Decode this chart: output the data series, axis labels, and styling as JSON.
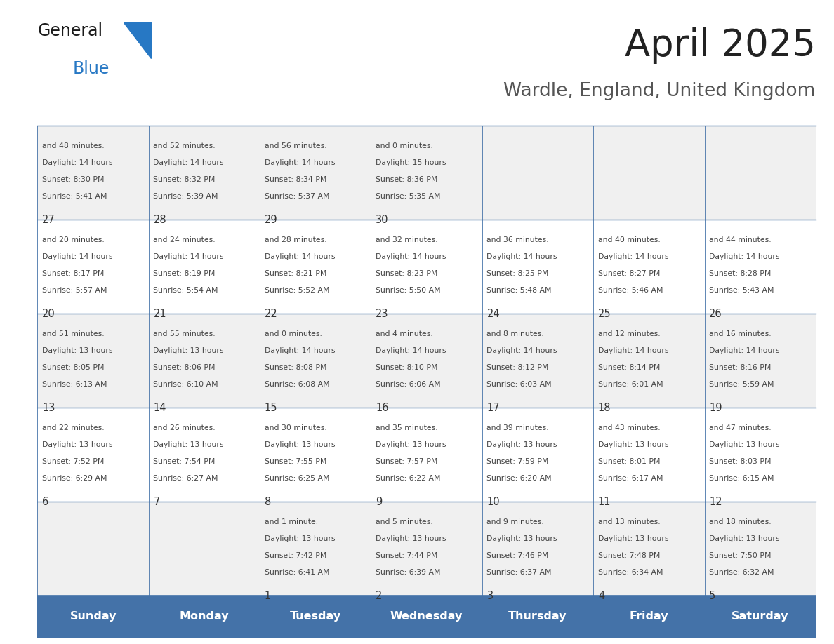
{
  "title": "April 2025",
  "subtitle": "Wardle, England, United Kingdom",
  "days_of_week": [
    "Sunday",
    "Monday",
    "Tuesday",
    "Wednesday",
    "Thursday",
    "Friday",
    "Saturday"
  ],
  "header_bg": "#4472a8",
  "header_text": "#ffffff",
  "cell_bg_odd": "#f0f0f0",
  "cell_bg_even": "#ffffff",
  "day_num_color": "#333333",
  "cell_text_color": "#444444",
  "border_color": "#4472a8",
  "title_color": "#222222",
  "subtitle_color": "#555555",
  "logo_general_color": "#1a1a1a",
  "logo_blue_color": "#2778c4",
  "weeks": [
    [
      {
        "day": null,
        "sunrise": null,
        "sunset": null,
        "daylight": null
      },
      {
        "day": null,
        "sunrise": null,
        "sunset": null,
        "daylight": null
      },
      {
        "day": 1,
        "sunrise": "6:41 AM",
        "sunset": "7:42 PM",
        "daylight_a": "13 hours",
        "daylight_b": "and 1 minute."
      },
      {
        "day": 2,
        "sunrise": "6:39 AM",
        "sunset": "7:44 PM",
        "daylight_a": "13 hours",
        "daylight_b": "and 5 minutes."
      },
      {
        "day": 3,
        "sunrise": "6:37 AM",
        "sunset": "7:46 PM",
        "daylight_a": "13 hours",
        "daylight_b": "and 9 minutes."
      },
      {
        "day": 4,
        "sunrise": "6:34 AM",
        "sunset": "7:48 PM",
        "daylight_a": "13 hours",
        "daylight_b": "and 13 minutes."
      },
      {
        "day": 5,
        "sunrise": "6:32 AM",
        "sunset": "7:50 PM",
        "daylight_a": "13 hours",
        "daylight_b": "and 18 minutes."
      }
    ],
    [
      {
        "day": 6,
        "sunrise": "6:29 AM",
        "sunset": "7:52 PM",
        "daylight_a": "13 hours",
        "daylight_b": "and 22 minutes."
      },
      {
        "day": 7,
        "sunrise": "6:27 AM",
        "sunset": "7:54 PM",
        "daylight_a": "13 hours",
        "daylight_b": "and 26 minutes."
      },
      {
        "day": 8,
        "sunrise": "6:25 AM",
        "sunset": "7:55 PM",
        "daylight_a": "13 hours",
        "daylight_b": "and 30 minutes."
      },
      {
        "day": 9,
        "sunrise": "6:22 AM",
        "sunset": "7:57 PM",
        "daylight_a": "13 hours",
        "daylight_b": "and 35 minutes."
      },
      {
        "day": 10,
        "sunrise": "6:20 AM",
        "sunset": "7:59 PM",
        "daylight_a": "13 hours",
        "daylight_b": "and 39 minutes."
      },
      {
        "day": 11,
        "sunrise": "6:17 AM",
        "sunset": "8:01 PM",
        "daylight_a": "13 hours",
        "daylight_b": "and 43 minutes."
      },
      {
        "day": 12,
        "sunrise": "6:15 AM",
        "sunset": "8:03 PM",
        "daylight_a": "13 hours",
        "daylight_b": "and 47 minutes."
      }
    ],
    [
      {
        "day": 13,
        "sunrise": "6:13 AM",
        "sunset": "8:05 PM",
        "daylight_a": "13 hours",
        "daylight_b": "and 51 minutes."
      },
      {
        "day": 14,
        "sunrise": "6:10 AM",
        "sunset": "8:06 PM",
        "daylight_a": "13 hours",
        "daylight_b": "and 55 minutes."
      },
      {
        "day": 15,
        "sunrise": "6:08 AM",
        "sunset": "8:08 PM",
        "daylight_a": "14 hours",
        "daylight_b": "and 0 minutes."
      },
      {
        "day": 16,
        "sunrise": "6:06 AM",
        "sunset": "8:10 PM",
        "daylight_a": "14 hours",
        "daylight_b": "and 4 minutes."
      },
      {
        "day": 17,
        "sunrise": "6:03 AM",
        "sunset": "8:12 PM",
        "daylight_a": "14 hours",
        "daylight_b": "and 8 minutes."
      },
      {
        "day": 18,
        "sunrise": "6:01 AM",
        "sunset": "8:14 PM",
        "daylight_a": "14 hours",
        "daylight_b": "and 12 minutes."
      },
      {
        "day": 19,
        "sunrise": "5:59 AM",
        "sunset": "8:16 PM",
        "daylight_a": "14 hours",
        "daylight_b": "and 16 minutes."
      }
    ],
    [
      {
        "day": 20,
        "sunrise": "5:57 AM",
        "sunset": "8:17 PM",
        "daylight_a": "14 hours",
        "daylight_b": "and 20 minutes."
      },
      {
        "day": 21,
        "sunrise": "5:54 AM",
        "sunset": "8:19 PM",
        "daylight_a": "14 hours",
        "daylight_b": "and 24 minutes."
      },
      {
        "day": 22,
        "sunrise": "5:52 AM",
        "sunset": "8:21 PM",
        "daylight_a": "14 hours",
        "daylight_b": "and 28 minutes."
      },
      {
        "day": 23,
        "sunrise": "5:50 AM",
        "sunset": "8:23 PM",
        "daylight_a": "14 hours",
        "daylight_b": "and 32 minutes."
      },
      {
        "day": 24,
        "sunrise": "5:48 AM",
        "sunset": "8:25 PM",
        "daylight_a": "14 hours",
        "daylight_b": "and 36 minutes."
      },
      {
        "day": 25,
        "sunrise": "5:46 AM",
        "sunset": "8:27 PM",
        "daylight_a": "14 hours",
        "daylight_b": "and 40 minutes."
      },
      {
        "day": 26,
        "sunrise": "5:43 AM",
        "sunset": "8:28 PM",
        "daylight_a": "14 hours",
        "daylight_b": "and 44 minutes."
      }
    ],
    [
      {
        "day": 27,
        "sunrise": "5:41 AM",
        "sunset": "8:30 PM",
        "daylight_a": "14 hours",
        "daylight_b": "and 48 minutes."
      },
      {
        "day": 28,
        "sunrise": "5:39 AM",
        "sunset": "8:32 PM",
        "daylight_a": "14 hours",
        "daylight_b": "and 52 minutes."
      },
      {
        "day": 29,
        "sunrise": "5:37 AM",
        "sunset": "8:34 PM",
        "daylight_a": "14 hours",
        "daylight_b": "and 56 minutes."
      },
      {
        "day": 30,
        "sunrise": "5:35 AM",
        "sunset": "8:36 PM",
        "daylight_a": "15 hours",
        "daylight_b": "and 0 minutes."
      },
      {
        "day": null,
        "sunrise": null,
        "sunset": null,
        "daylight_a": null,
        "daylight_b": null
      },
      {
        "day": null,
        "sunrise": null,
        "sunset": null,
        "daylight_a": null,
        "daylight_b": null
      },
      {
        "day": null,
        "sunrise": null,
        "sunset": null,
        "daylight_a": null,
        "daylight_b": null
      }
    ]
  ],
  "figsize": [
    11.88,
    9.18
  ],
  "dpi": 100
}
